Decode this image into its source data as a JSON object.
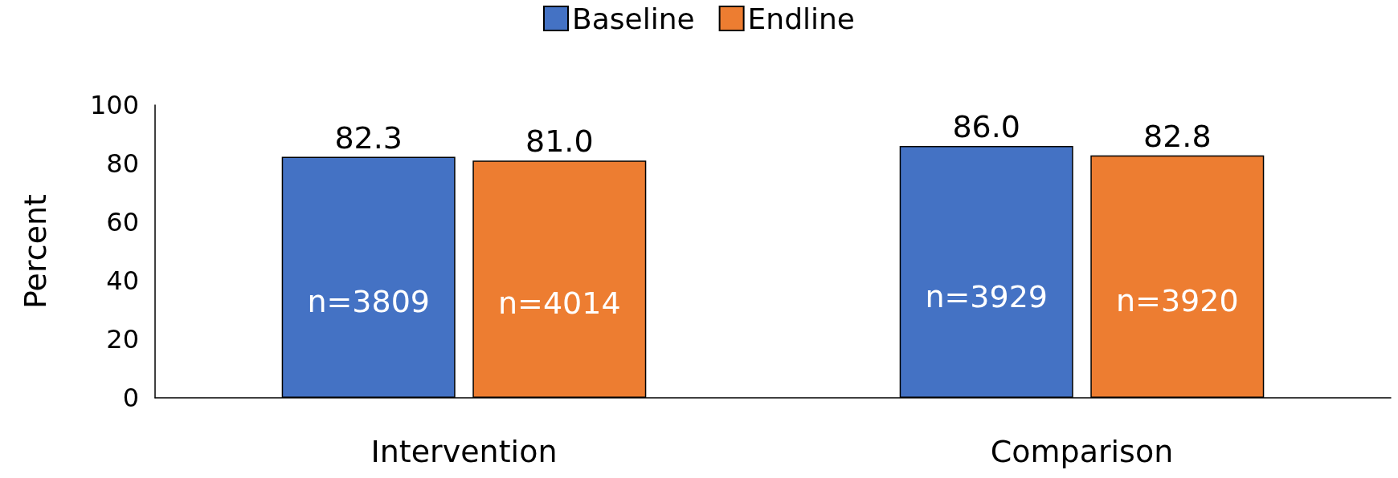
{
  "chart_data": {
    "type": "bar",
    "ylabel": "Percent",
    "categories": [
      "Intervention",
      "Comparison"
    ],
    "series": [
      {
        "name": "Baseline",
        "color": "#4472c4",
        "values": [
          82.3,
          86.0
        ],
        "value_labels": [
          "82.3",
          "86.0"
        ]
      },
      {
        "name": "Endline",
        "color": "#ed7d31",
        "values": [
          81.0,
          82.8
        ],
        "value_labels": [
          "81.0",
          "82.8"
        ]
      }
    ],
    "ylim": [
      0,
      100
    ],
    "yticks": [
      0,
      20,
      40,
      60,
      80,
      100
    ],
    "grid": false,
    "legend": "top",
    "annotations": [
      "n=3809",
      "n=4014",
      "n=3929",
      "n=3920"
    ]
  }
}
